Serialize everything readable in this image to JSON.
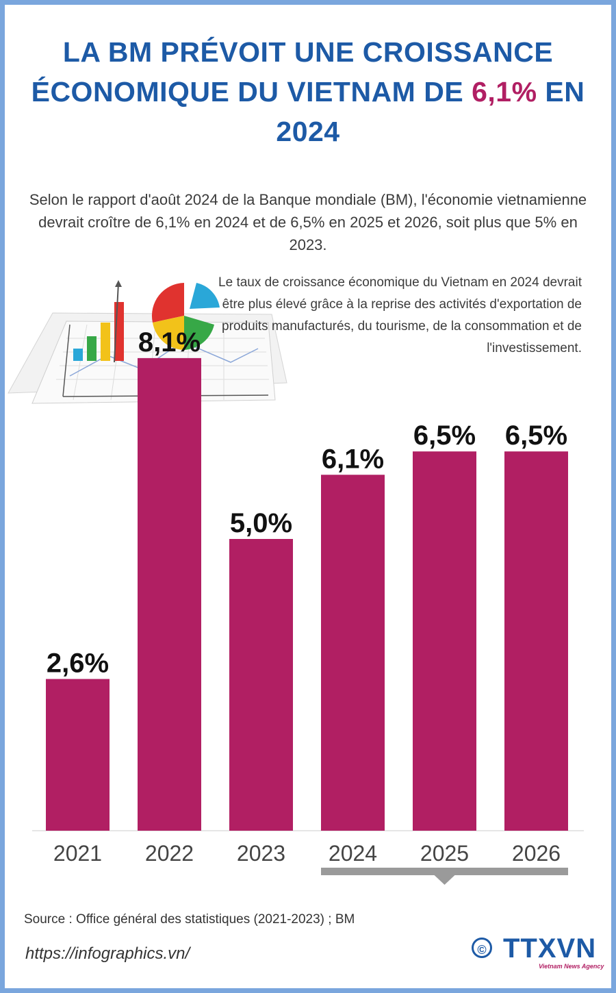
{
  "title": {
    "line1": "LA BM PRÉVOIT UNE CROISSANCE",
    "line2_prefix": "ÉCONOMIQUE DU VIETNAM DE ",
    "line2_highlight": "6,1%",
    "line2_suffix": " EN 2024"
  },
  "intro": "Selon le rapport d'août 2024 de la Banque mondiale (BM), l'économie vietnamienne devrait croître de 6,1% en 2024 et de 6,5% en 2025 et 2026, soit plus que 5% en 2023.",
  "note": "Le taux de croissance économique du Vietnam en 2024 devrait être plus élevé grâce à la reprise des activités d'exportation de produits manufacturés, du tourisme, de la consommation et de l'investissement.",
  "colors": {
    "title": "#1d5aa6",
    "highlight": "#b11f63",
    "bar": "#b11f63",
    "bracket": "#9a9a9a",
    "border": "#7aa6dd"
  },
  "chart_data": {
    "type": "bar",
    "categories": [
      "2021",
      "2022",
      "2023",
      "2024",
      "2025",
      "2026"
    ],
    "values": [
      2.6,
      8.1,
      5.0,
      6.1,
      6.5,
      6.5
    ],
    "value_labels": [
      "2,6%",
      "8,1%",
      "5,0%",
      "6,1%",
      "6,5%",
      "6,5%"
    ],
    "unit": "%",
    "grid": false,
    "forecast_bracket": [
      "2024",
      "2026"
    ]
  },
  "footer": {
    "source": "Source : Office général des statistiques (2021-2023) ; BM",
    "url": "https://infographics.vn/",
    "copyright": "©",
    "logo": "TTXVN",
    "logo_sub": "Vietnam News Agency"
  }
}
